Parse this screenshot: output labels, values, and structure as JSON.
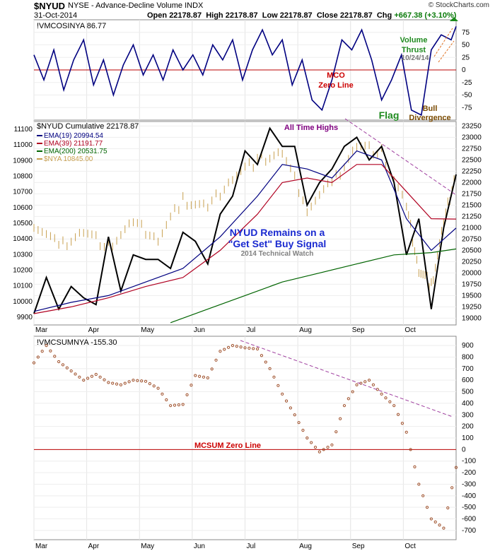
{
  "header": {
    "symbol": "$NYUD",
    "description": "NYSE - Advance-Decline Volume INDX",
    "date": "31-Oct-2014",
    "open_label": "Open",
    "open": "22178.87",
    "high_label": "High",
    "high": "22178.87",
    "low_label": "Low",
    "low": "22178.87",
    "close_label": "Close",
    "close": "22178.87",
    "chg_label": "Chg",
    "chg": "+667.38 (+3.10%)",
    "brand": "© StockCharts.com"
  },
  "chart_data": [
    {
      "type": "line",
      "panel": "top",
      "title": "!VMCOSINYA 86.77",
      "ylim": [
        -100,
        100
      ],
      "yticks": [
        -75,
        -50,
        -25,
        0,
        25,
        50,
        75
      ],
      "x_range": [
        0,
        170
      ],
      "series": [
        {
          "name": "!VMCOSINYA",
          "color": "#000080",
          "x": [
            0,
            4,
            8,
            12,
            16,
            20,
            24,
            28,
            32,
            36,
            40,
            44,
            48,
            52,
            56,
            60,
            64,
            68,
            72,
            76,
            80,
            84,
            88,
            92,
            96,
            100,
            104,
            108,
            112,
            116,
            120,
            124,
            128,
            132,
            136,
            140,
            144,
            148,
            152,
            156,
            160,
            164,
            168,
            170
          ],
          "y": [
            30,
            -20,
            40,
            -40,
            20,
            60,
            -30,
            20,
            -50,
            10,
            50,
            -10,
            30,
            -20,
            40,
            0,
            30,
            -10,
            50,
            20,
            60,
            -20,
            40,
            80,
            30,
            60,
            -30,
            20,
            -60,
            -80,
            -20,
            60,
            40,
            80,
            20,
            -60,
            -20,
            30,
            -80,
            -90,
            40,
            70,
            60,
            86.77
          ]
        }
      ],
      "annotations": [
        {
          "text": "MCO",
          "color": "#cc0000"
        },
        {
          "text": "Zero Line",
          "color": "#cc0000"
        },
        {
          "text": "Flag",
          "color": "#1f8a1f"
        },
        {
          "text": "Bull",
          "color": "#7a4a00"
        },
        {
          "text": "Divergence",
          "color": "#7a4a00"
        },
        {
          "text": "Volume",
          "color": "#1f8a1f"
        },
        {
          "text": "Thrust",
          "color": "#1f8a1f"
        },
        {
          "text": "10/24/14",
          "color": "#777777"
        }
      ]
    },
    {
      "type": "line",
      "panel": "middle",
      "title": "$NYUD Cumulative 22178.87",
      "ylim_left": [
        9850,
        11150
      ],
      "yticks_left": [
        9900,
        10000,
        10100,
        10200,
        10300,
        10400,
        10500,
        10600,
        10700,
        10800,
        10900,
        11000,
        11100
      ],
      "ylim_right": [
        18850,
        23350
      ],
      "yticks_right": [
        19000,
        19250,
        19500,
        19750,
        20000,
        20250,
        20500,
        20750,
        21000,
        21250,
        21500,
        21750,
        22000,
        22250,
        22500,
        22750,
        23000,
        23250
      ],
      "x_range": [
        0,
        170
      ],
      "series": [
        {
          "name": "$NYUD Cumulative 22178.87",
          "color": "#000000",
          "axis": "right",
          "x": [
            0,
            5,
            10,
            15,
            20,
            25,
            30,
            35,
            40,
            45,
            50,
            55,
            60,
            65,
            70,
            75,
            80,
            85,
            90,
            95,
            100,
            105,
            110,
            115,
            120,
            125,
            130,
            135,
            140,
            145,
            150,
            155,
            160,
            165,
            170
          ],
          "y": [
            19100,
            19900,
            19200,
            19700,
            19450,
            19300,
            20800,
            19600,
            20400,
            20300,
            20300,
            20100,
            20900,
            20700,
            20200,
            21300,
            21700,
            22700,
            22400,
            23200,
            22800,
            22800,
            21500,
            22000,
            22300,
            22800,
            23000,
            22500,
            22800,
            22000,
            20400,
            21200,
            19200,
            21000,
            22178.87
          ]
        },
        {
          "name": "EMA(19) 20994.54",
          "color": "#000080",
          "axis": "right",
          "x": [
            0,
            15,
            30,
            45,
            60,
            75,
            90,
            100,
            110,
            120,
            130,
            140,
            150,
            160,
            170
          ],
          "y": [
            19150,
            19350,
            19500,
            19800,
            20100,
            20800,
            21700,
            22400,
            22300,
            22100,
            22700,
            22500,
            21200,
            20500,
            20994.54
          ]
        },
        {
          "name": "EMA(39) 21191.77",
          "color": "#b00020",
          "axis": "right",
          "x": [
            0,
            15,
            30,
            45,
            60,
            75,
            90,
            100,
            110,
            120,
            130,
            140,
            150,
            160,
            170
          ],
          "y": [
            19100,
            19250,
            19450,
            19700,
            19900,
            20500,
            21300,
            22000,
            22100,
            22000,
            22400,
            22400,
            21800,
            21200,
            21191.77
          ]
        },
        {
          "name": "EMA(200) 20531.75",
          "color": "#006400",
          "axis": "right",
          "x": [
            55,
            70,
            85,
            100,
            115,
            130,
            145,
            160,
            170
          ],
          "y": [
            18900,
            19200,
            19500,
            19800,
            20000,
            20200,
            20400,
            20450,
            20531.75
          ]
        },
        {
          "name": "$NYA 10845.00",
          "color": "#c8a050",
          "axis": "left",
          "x": [
            0,
            10,
            20,
            30,
            40,
            50,
            60,
            70,
            80,
            90,
            100,
            110,
            120,
            130,
            140,
            150,
            155,
            160,
            165,
            170
          ],
          "y": [
            10500,
            10350,
            10450,
            10350,
            10500,
            10400,
            10650,
            10600,
            10800,
            10900,
            10950,
            10600,
            10750,
            11000,
            10950,
            10600,
            10200,
            10100,
            10500,
            10845
          ]
        }
      ],
      "trendline": {
        "name": "resistance",
        "color": "#a040a0",
        "dashed": true
      },
      "annotations": [
        {
          "text": "All Time Highs",
          "color": "#800080"
        },
        {
          "text": "NYUD Remains on a",
          "color": "#1a2ad0"
        },
        {
          "text": "\"Get Set\" Buy Signal",
          "color": "#1a2ad0"
        },
        {
          "text": "2014 Technical Watch",
          "color": "#808080"
        }
      ]
    },
    {
      "type": "scatter",
      "panel": "bottom",
      "title": "!VMCSUMNYA -155.30",
      "ylim": [
        -780,
        980
      ],
      "yticks": [
        -700,
        -600,
        -500,
        -400,
        -300,
        -200,
        -100,
        0,
        100,
        200,
        300,
        400,
        500,
        600,
        700,
        800,
        900
      ],
      "x_range": [
        0,
        170
      ],
      "series": [
        {
          "name": "!VMCSUMNYA",
          "color": "#a0522d",
          "x": [
            0,
            5,
            10,
            15,
            20,
            25,
            30,
            35,
            40,
            45,
            50,
            55,
            60,
            65,
            70,
            75,
            80,
            85,
            90,
            95,
            100,
            105,
            110,
            115,
            120,
            125,
            130,
            135,
            140,
            145,
            150,
            155,
            160,
            165,
            170
          ],
          "y": [
            750,
            900,
            760,
            680,
            600,
            650,
            580,
            560,
            600,
            590,
            530,
            380,
            390,
            640,
            620,
            850,
            900,
            880,
            870,
            700,
            480,
            300,
            100,
            -20,
            40,
            380,
            560,
            600,
            480,
            380,
            150,
            -300,
            -600,
            -680,
            -155.3
          ]
        }
      ],
      "trendline": {
        "name": "resistance",
        "color": "#a040a0",
        "dashed": true
      },
      "annotations": [
        {
          "text": "MCSUM Zero Line",
          "color": "#cc0000"
        }
      ]
    }
  ],
  "x_axis_labels": [
    "Mar",
    "Apr",
    "May",
    "Jun",
    "Jul",
    "Aug",
    "Sep",
    "Oct"
  ]
}
